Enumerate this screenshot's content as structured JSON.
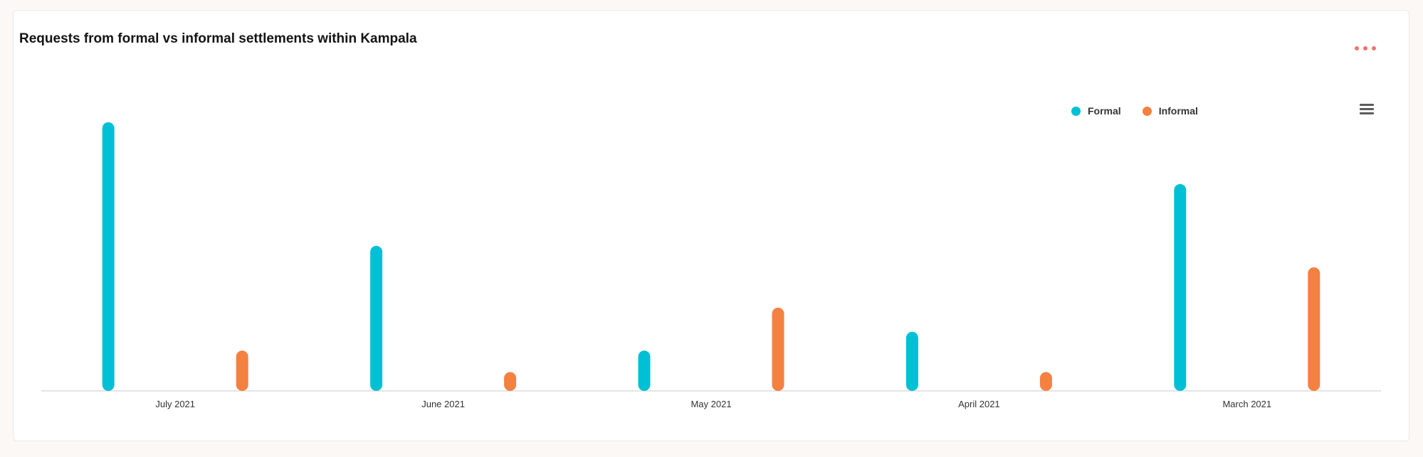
{
  "header": {
    "title": "Requests from formal vs informal settlements within Kampala"
  },
  "chart_data": {
    "type": "bar",
    "title": "Requests from formal vs informal settlements within Kampala",
    "xlabel": "",
    "ylabel": "",
    "categories": [
      "July 2021",
      "June 2021",
      "May 2021",
      "April 2021",
      "March 2021"
    ],
    "series": [
      {
        "name": "Formal",
        "color": "#00c0d6",
        "values": [
          100,
          54,
          15,
          22,
          77
        ]
      },
      {
        "name": "Informal",
        "color": "#f58140",
        "values": [
          15,
          7,
          31,
          7,
          46
        ]
      }
    ],
    "ylim": [
      0,
      100
    ],
    "grid": false,
    "legend": "top-right"
  },
  "icons": {
    "more": "more-dots-icon",
    "menu": "hamburger-menu-icon"
  }
}
